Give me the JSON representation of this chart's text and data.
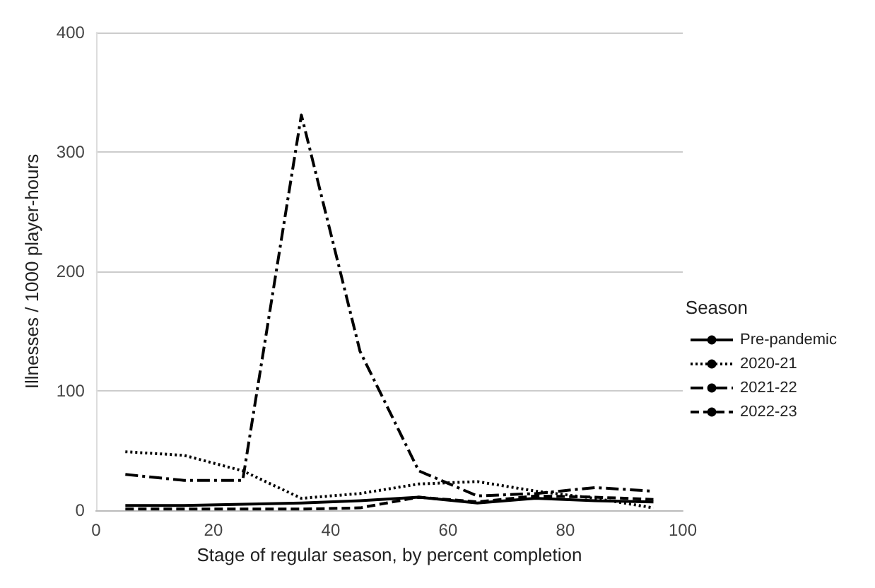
{
  "chart_data": {
    "type": "line",
    "xlabel": "Stage of regular season, by percent completion",
    "ylabel": "Illnesses / 1000 player-hours",
    "legend_title": "Season",
    "legend": "right",
    "grid": "y",
    "marker": "none",
    "x": [
      5,
      15,
      25,
      35,
      45,
      55,
      65,
      75,
      85,
      95
    ],
    "xlim": [
      0,
      100
    ],
    "xticks": [
      0,
      20,
      40,
      60,
      80,
      100
    ],
    "ylim": [
      0,
      400
    ],
    "yticks": [
      0,
      100,
      200,
      300,
      400
    ],
    "series": [
      {
        "name": "Pre-pandemic",
        "color": "#000000",
        "line_style": "solid",
        "values": [
          4,
          4,
          5,
          6,
          8,
          11,
          6,
          10,
          8,
          7
        ]
      },
      {
        "name": "2020-21",
        "color": "#000000",
        "line_style": "dotted",
        "values": [
          49,
          46,
          33,
          10,
          14,
          22,
          24,
          16,
          10,
          2
        ]
      },
      {
        "name": "2021-22",
        "color": "#000000",
        "line_style": "dashdot",
        "values": [
          30,
          25,
          25,
          331,
          133,
          33,
          12,
          14,
          19,
          16
        ]
      },
      {
        "name": "2022-23",
        "color": "#000000",
        "line_style": "dashed",
        "values": [
          1,
          1,
          1,
          1,
          2,
          11,
          7,
          12,
          11,
          9
        ]
      }
    ]
  }
}
